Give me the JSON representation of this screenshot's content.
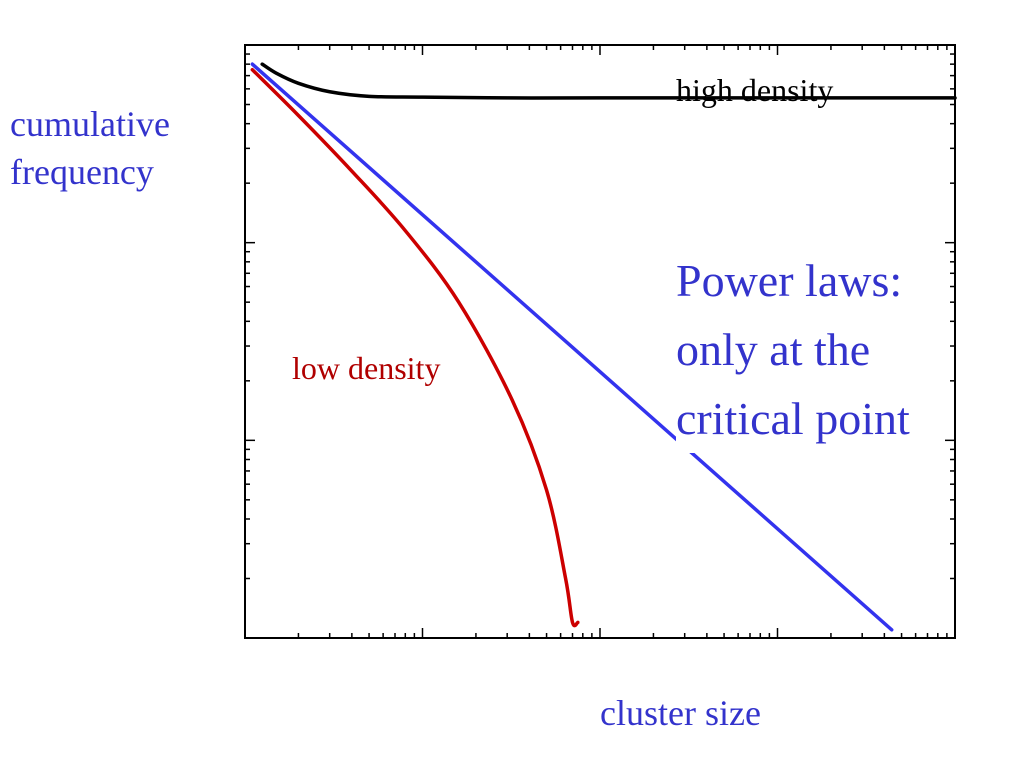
{
  "chart_data": {
    "type": "line",
    "xlabel": "cluster size",
    "ylabel": [
      "cumulative",
      "frequency"
    ],
    "xscale": "log",
    "yscale": "log",
    "xlim": [
      1,
      10000
    ],
    "ylim": [
      0.001,
      1
    ],
    "grid": false,
    "annotation": [
      "Power laws:",
      "only at the",
      "critical point"
    ],
    "series": [
      {
        "name": "high density",
        "color": "#000000",
        "x": [
          1.25,
          1.5,
          2,
          3,
          5,
          10,
          30,
          100,
          1000,
          10000
        ],
        "y": [
          0.8,
          0.72,
          0.64,
          0.58,
          0.55,
          0.545,
          0.54,
          0.54,
          0.54,
          0.54
        ]
      },
      {
        "name": "low density",
        "color": "#cc0000",
        "x": [
          1.1,
          2,
          4,
          8,
          16,
          32,
          50,
          64,
          70,
          75
        ],
        "y": [
          0.75,
          0.44,
          0.23,
          0.115,
          0.05,
          0.016,
          0.0056,
          0.002,
          0.0012,
          0.0012
        ]
      },
      {
        "name": "critical point",
        "color": "#3333ee",
        "x": [
          1.1,
          4400
        ],
        "y": [
          0.8,
          0.0011
        ]
      }
    ]
  }
}
